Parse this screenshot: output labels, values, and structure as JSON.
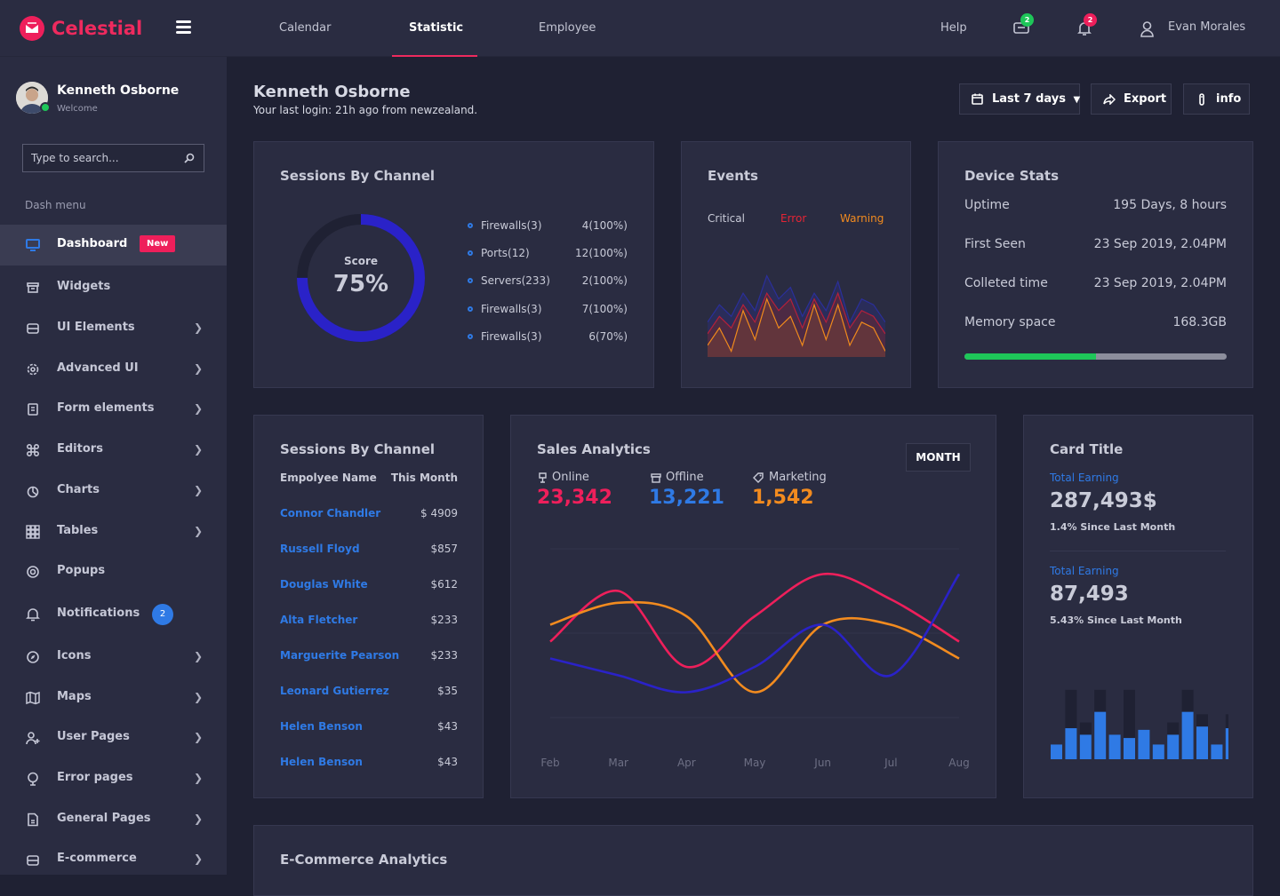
{
  "brand": {
    "name": "Celestial"
  },
  "topnav": {
    "items": [
      "Calendar",
      "Statistic",
      "Employee"
    ],
    "active": "Statistic"
  },
  "topright": {
    "help": "Help",
    "messages_count": "2",
    "notifications_count": "2",
    "user_name": "Evan Morales"
  },
  "sidebar": {
    "profile": {
      "name": "Kenneth Osborne",
      "subtitle": "Welcome"
    },
    "search": {
      "placeholder": "Type to search..."
    },
    "section_label": "Dash menu",
    "items": [
      {
        "label": "Dashboard",
        "icon": "monitor-icon",
        "badge": "New"
      },
      {
        "label": "Widgets",
        "icon": "widget-icon"
      },
      {
        "label": "UI Elements",
        "icon": "ui-icon"
      },
      {
        "label": "Advanced UI",
        "icon": "gear-icon"
      },
      {
        "label": "Form elements",
        "icon": "form-icon"
      },
      {
        "label": "Editors",
        "icon": "command-icon"
      },
      {
        "label": "Charts",
        "icon": "pie-icon"
      },
      {
        "label": "Tables",
        "icon": "grid-icon"
      },
      {
        "label": "Popups",
        "icon": "target-icon"
      },
      {
        "label": "Notifications",
        "icon": "bell-icon",
        "count": "2"
      },
      {
        "label": "Icons",
        "icon": "compass-icon"
      },
      {
        "label": "Maps",
        "icon": "map-icon"
      },
      {
        "label": "User Pages",
        "icon": "user-plus-icon"
      },
      {
        "label": "Error pages",
        "icon": "error-icon"
      },
      {
        "label": "General Pages",
        "icon": "file-icon"
      },
      {
        "label": "E-commerce",
        "icon": "cart-icon"
      }
    ]
  },
  "header": {
    "title": "Kenneth Osborne",
    "subtitle": "Your last login: 21h ago from newzealand.",
    "buttons": {
      "range": "Last 7 days",
      "export": "Export",
      "info": "info"
    }
  },
  "sessions_card": {
    "title": "Sessions By Channel",
    "score_label": "Score",
    "score_value": "75%",
    "score_fraction": 0.75,
    "legend": [
      {
        "label": "Firewalls(3)",
        "value": "4(100%)"
      },
      {
        "label": "Ports(12)",
        "value": "12(100%)"
      },
      {
        "label": "Servers(233)",
        "value": "2(100%)"
      },
      {
        "label": "Firewalls(3)",
        "value": "7(100%)"
      },
      {
        "label": "Firewalls(3)",
        "value": "6(70%)"
      }
    ]
  },
  "events_card": {
    "title": "Events",
    "legend": [
      "Critical",
      "Error",
      "Warning"
    ],
    "colors": {
      "critical": "#2a2f9a",
      "error": "#b4203a",
      "warning": "#f08a1c"
    }
  },
  "device_stats": {
    "title": "Device Stats",
    "rows": [
      {
        "label": "Uptime",
        "value": "195 Days, 8 hours"
      },
      {
        "label": "First Seen",
        "value": "23 Sep 2019, 2.04PM"
      },
      {
        "label": "Colleted time",
        "value": "23 Sep 2019, 2.04PM"
      },
      {
        "label": "Memory space",
        "value": "168.3GB"
      }
    ],
    "memory_fraction": 0.5
  },
  "employee_card": {
    "title": "Sessions By Channel",
    "headers": [
      "Empolyee Name",
      "This Month"
    ],
    "rows": [
      {
        "name": "Connor Chandler",
        "value": "$ 4909"
      },
      {
        "name": "Russell Floyd",
        "value": "$857"
      },
      {
        "name": "Douglas White",
        "value": "$612"
      },
      {
        "name": "Alta Fletcher",
        "value": "$233"
      },
      {
        "name": "Marguerite Pearson",
        "value": "$233"
      },
      {
        "name": "Leonard Gutierrez",
        "value": "$35"
      },
      {
        "name": "Helen Benson",
        "value": "$43"
      },
      {
        "name": "Helen Benson",
        "value": "$43"
      }
    ]
  },
  "sales_card": {
    "title": "Sales Analytics",
    "period_button": "MONTH",
    "metrics": [
      {
        "label": "Online",
        "value": "23,342",
        "color": "#ee1f5b"
      },
      {
        "label": "Offline",
        "value": "13,221",
        "color": "#2f7ae5"
      },
      {
        "label": "Marketing",
        "value": "1,542",
        "color": "#f28b1f"
      }
    ]
  },
  "earning_card": {
    "title": "Card Title",
    "blocks": [
      {
        "label": "Total Earning",
        "value": "287,493$",
        "note": "1.4% Since Last Month"
      },
      {
        "label": "Total Earning",
        "value": "87,493",
        "note": "5.43% Since Last Month"
      }
    ]
  },
  "ecommerce": {
    "title": "E-Commerce Analytics"
  },
  "chart_data": [
    {
      "type": "line",
      "title": "Sales Analytics",
      "categories": [
        "Feb",
        "Mar",
        "Apr",
        "May",
        "Jun",
        "Jul",
        "Aug"
      ],
      "series": [
        {
          "name": "Online",
          "color": "#ee1f5b",
          "values": [
            45,
            75,
            30,
            60,
            85,
            70,
            45
          ]
        },
        {
          "name": "Marketing",
          "color": "#f28b1f",
          "values": [
            55,
            68,
            60,
            15,
            55,
            55,
            35
          ]
        },
        {
          "name": "Offline",
          "color": "#2a22c8",
          "values": [
            35,
            25,
            15,
            30,
            55,
            25,
            85
          ]
        }
      ]
    },
    {
      "type": "bar",
      "title": "",
      "values": [
        0.18,
        0.38,
        0.3,
        0.58,
        0.3,
        0.26,
        0.36,
        0.18,
        0.3,
        0.58,
        0.4,
        0.18,
        0.38
      ],
      "backgrounds": [
        0,
        0.85,
        0.45,
        0.85,
        0,
        0.85,
        0,
        0,
        0.45,
        0.85,
        0.55,
        0,
        0.55
      ],
      "color": "#2f7ae5"
    },
    {
      "type": "area",
      "title": "Events",
      "series": [
        {
          "name": "Critical",
          "values": [
            30,
            45,
            35,
            55,
            40,
            70,
            50,
            60,
            35,
            55,
            40,
            65,
            30,
            50,
            45,
            30
          ]
        },
        {
          "name": "Error",
          "values": [
            20,
            35,
            25,
            45,
            30,
            55,
            40,
            50,
            25,
            50,
            30,
            55,
            25,
            40,
            35,
            20
          ]
        },
        {
          "name": "Warning",
          "values": [
            10,
            25,
            5,
            40,
            15,
            50,
            25,
            35,
            10,
            45,
            15,
            45,
            10,
            30,
            25,
            5
          ]
        }
      ]
    }
  ]
}
